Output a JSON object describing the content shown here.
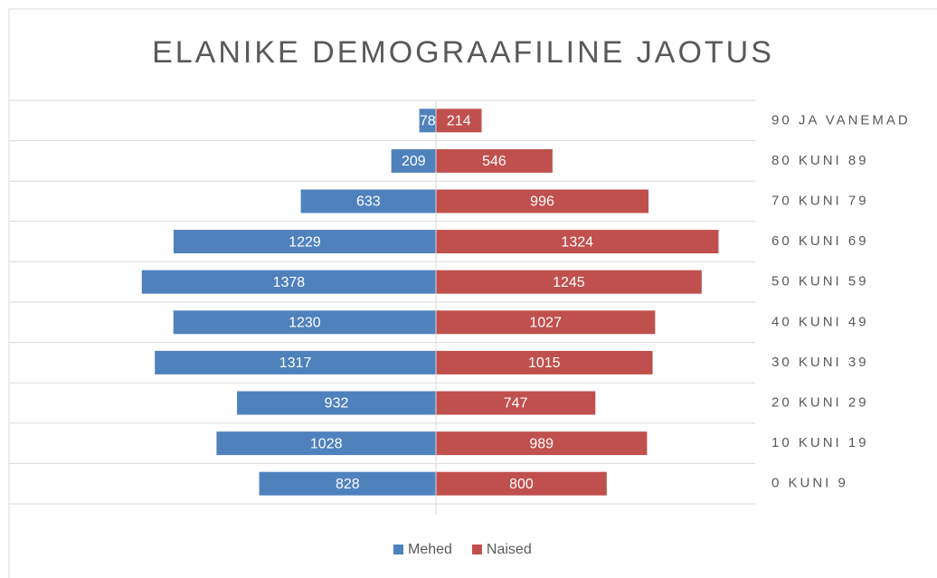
{
  "chart_data": {
    "type": "pyramid",
    "title": "ELANIKE DEMOGRAAFILINE JAOTUS",
    "categories": [
      "90 JA VANEMAD",
      "80 KUNI 89",
      "70 KUNI 79",
      "60 KUNI 69",
      "50 KUNI 59",
      "40 KUNI 49",
      "30 KUNI 39",
      "20 KUNI 29",
      "10 KUNI 19",
      "0 KUNI 9"
    ],
    "series": [
      {
        "name": "Mehed",
        "color": "#4f81bd",
        "values": [
          78,
          209,
          633,
          1229,
          1378,
          1230,
          1317,
          932,
          1028,
          828
        ]
      },
      {
        "name": "Naised",
        "color": "#c0504d",
        "values": [
          214,
          546,
          996,
          1324,
          1245,
          1027,
          1015,
          747,
          989,
          800
        ]
      }
    ],
    "legend": "bottom"
  }
}
